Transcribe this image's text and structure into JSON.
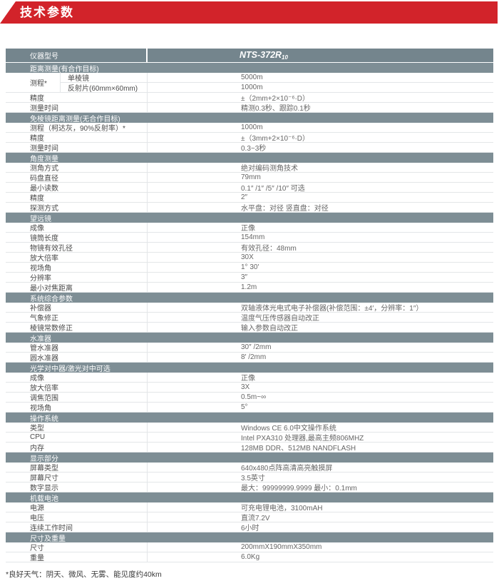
{
  "banner": {
    "title": "技术参数"
  },
  "colors": {
    "accent_red": "#d2232a",
    "section_header_bg": "#7e8e95",
    "table_header_bg": "#74858d",
    "row_border": "#e3e6e8"
  },
  "table": {
    "header": {
      "label": "仪器型号",
      "model": "NTS-372R",
      "model_subscript": "10"
    },
    "sections": [
      {
        "title": "距离测量(有合作目标)",
        "rows": [
          {
            "label": "测程*",
            "subrows": [
              {
                "label": "单棱镜",
                "value": "5000m"
              },
              {
                "label": "反射片(60mm×60mm)",
                "value": "1000m"
              }
            ]
          },
          {
            "label": "精度",
            "value": "±（2mm+2×10⁻⁶·D）"
          },
          {
            "label": "测量时间",
            "value": "精测0.3秒、跟踪0.1秒"
          }
        ]
      },
      {
        "title": "免棱镜距离测量(无合作目标)",
        "rows": [
          {
            "label": "测程（柯达灰，90%反射率）*",
            "value": "1000m"
          },
          {
            "label": "精度",
            "value": "±（3mm+2×10⁻⁶·D）"
          },
          {
            "label": "测量时间",
            "value": "0.3~3秒"
          }
        ]
      },
      {
        "title": "角度测量",
        "rows": [
          {
            "label": "测角方式",
            "value": "绝对编码测角技术"
          },
          {
            "label": "码盘直径",
            "value": "79mm"
          },
          {
            "label": "最小读数",
            "value": "0.1″ /1″ /5″ /10″ 可选"
          },
          {
            "label": "精度",
            "value": "2″"
          },
          {
            "label": "探测方式",
            "value": "水平盘：对径 竖直盘：对径"
          }
        ]
      },
      {
        "title": "望远镜",
        "rows": [
          {
            "label": "成像",
            "value": "正像"
          },
          {
            "label": "镜筒长度",
            "value": "154mm"
          },
          {
            "label": "物镜有效孔径",
            "value": "有效孔径：48mm"
          },
          {
            "label": "放大倍率",
            "value": "30X"
          },
          {
            "label": "视场角",
            "value": "1° 30′"
          },
          {
            "label": "分辨率",
            "value": "3″"
          },
          {
            "label": "最小对焦距离",
            "value": "1.2m"
          }
        ]
      },
      {
        "title": "系统综合参数",
        "rows": [
          {
            "label": "补偿器",
            "value": "双轴液体光电式电子补偿器(补偿范围：±4′，分辨率：1″）"
          },
          {
            "label": "气象修正",
            "value": "温度气压传感器自动改正"
          },
          {
            "label": "棱镜常数修正",
            "value": "输入参数自动改正"
          }
        ]
      },
      {
        "title": "水准器",
        "rows": [
          {
            "label": "管水准器",
            "value": "30″ /2mm"
          },
          {
            "label": "圆水准器",
            "value": "8′ /2mm"
          }
        ]
      },
      {
        "title": "光学对中器/激光对中可选",
        "rows": [
          {
            "label": "成像",
            "value": "正像"
          },
          {
            "label": "放大倍率",
            "value": "3X"
          },
          {
            "label": "调焦范围",
            "value": "0.5m~∞"
          },
          {
            "label": "视场角",
            "value": "5°"
          }
        ]
      },
      {
        "title": "操作系统",
        "rows": [
          {
            "label": "类型",
            "value": "Windows CE 6.0中文操作系统"
          },
          {
            "label": "CPU",
            "value": "Intel PXA310 处理器,最高主频806MHZ"
          },
          {
            "label": "内存",
            "value": "128MB DDR、512MB NANDFLASH"
          }
        ]
      },
      {
        "title": "显示部分",
        "rows": [
          {
            "label": "屏幕类型",
            "value": "640x480点阵高清高亮触摸屏"
          },
          {
            "label": "屏幕尺寸",
            "value": "3.5英寸"
          },
          {
            "label": "数字显示",
            "value": "最大：99999999.9999  最小：0.1mm"
          }
        ]
      },
      {
        "title": "机载电池",
        "rows": [
          {
            "label": "电源",
            "value": "可充电锂电池，3100mAH"
          },
          {
            "label": "电压",
            "value": "直流7.2V"
          },
          {
            "label": "连续工作时间",
            "value": "6小时"
          }
        ]
      },
      {
        "title": "尺寸及重量",
        "rows": [
          {
            "label": "尺寸",
            "value": "200mmX190mmX350mm"
          },
          {
            "label": "重量",
            "value": "6.0Kg"
          }
        ]
      }
    ]
  },
  "footnote": "*良好天气：阴天、微风、无雾、能见度约40km"
}
